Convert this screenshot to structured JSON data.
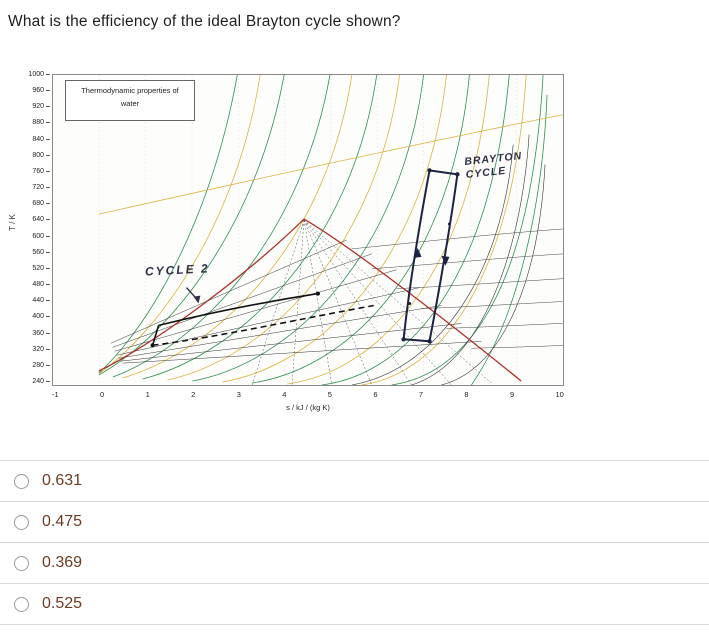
{
  "question": "What is the efficiency of the ideal Brayton cycle shown?",
  "options": [
    "0.631",
    "0.475",
    "0.369",
    "0.525"
  ],
  "chart": {
    "title": "Thermodynamic properties of\nwater",
    "ylabel": "T / K",
    "xlabel": "s / kJ / (kg K)",
    "y_ticks": [
      "1000",
      "960",
      "920",
      "880",
      "840",
      "800",
      "760",
      "720",
      "680",
      "640",
      "600",
      "560",
      "520",
      "480",
      "440",
      "400",
      "360",
      "320",
      "280",
      "240"
    ],
    "x_ticks": [
      "-1",
      "0",
      "1",
      "2",
      "3",
      "4",
      "5",
      "6",
      "7",
      "8",
      "9",
      "10"
    ],
    "annotations": {
      "cycle2": "CYCLE 2",
      "brayton": "BRAYTON\nCYCLE"
    },
    "colors": {
      "saturation_dome": "#a93226",
      "isobars_green": "#2f8f4f",
      "isolines_yellow": "#d9b33c",
      "hand_drawn": "#1c2340"
    }
  },
  "chart_data": {
    "type": "line",
    "title": "Thermodynamic properties of water (T-s diagram)",
    "xlabel": "s / kJ / (kg K)",
    "ylabel": "T / K",
    "xlim": [
      -1,
      10
    ],
    "ylim": [
      240,
      1000
    ],
    "annotations": [
      "CYCLE 2",
      "BRAYTON CYCLE"
    ]
  }
}
